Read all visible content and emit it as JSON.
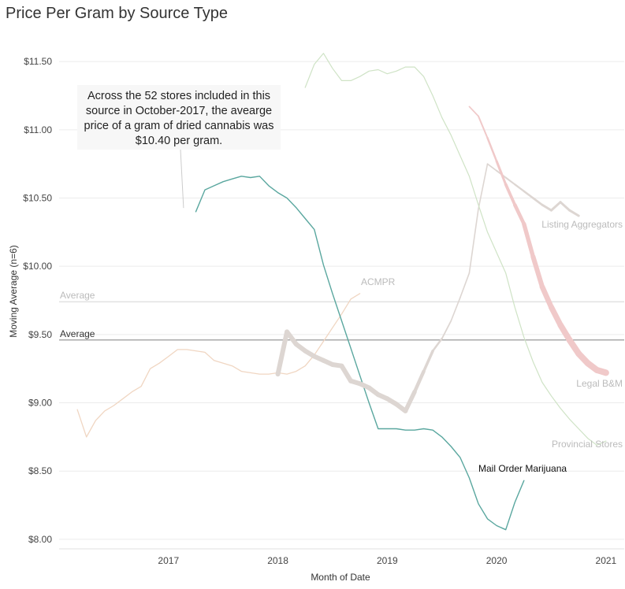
{
  "chart_data": {
    "type": "line",
    "title": "Price Per Gram by Source Type",
    "xlabel": "Month of Date",
    "ylabel": "Moving Average (n=6)",
    "x_ticks": [
      "2017",
      "2018",
      "2019",
      "2020",
      "2021"
    ],
    "y_ticks": [
      {
        "value": 8.0,
        "label": "$8.00"
      },
      {
        "value": 8.5,
        "label": "$8.50"
      },
      {
        "value": 9.0,
        "label": "$9.00"
      },
      {
        "value": 9.5,
        "label": "$9.50"
      },
      {
        "value": 10.0,
        "label": "$10.00"
      },
      {
        "value": 10.5,
        "label": "$10.50"
      },
      {
        "value": 11.0,
        "label": "$11.00"
      },
      {
        "value": 11.5,
        "label": "$11.50"
      }
    ],
    "xlim": [
      "2016-07",
      "2021-09"
    ],
    "ylim": [
      7.93,
      11.72
    ],
    "grid": "horizontal",
    "reference_lines": [
      {
        "label": "Average",
        "value": 9.74,
        "color": "#dddddd",
        "label_color": "#bbbbbb"
      },
      {
        "label": "Average",
        "value": 9.46,
        "color": "#999999",
        "label_color": "#333333"
      }
    ],
    "annotation": {
      "text": "Across the 52 stores included in this source in October-2017, the avearge price of a gram of dried cannabis was $10.40 per gram.",
      "target": {
        "x": "2017-09",
        "y": 10.45
      }
    },
    "series": [
      {
        "name": "ACMPR",
        "color": "#f0d6c2",
        "width": 1.3,
        "label_color": "#bbbbbb",
        "x": [
          "2016-09",
          "2016-10",
          "2016-11",
          "2016-12",
          "2017-01",
          "2017-02",
          "2017-03",
          "2017-04",
          "2017-05",
          "2017-06",
          "2017-07",
          "2017-08",
          "2017-09",
          "2017-10",
          "2017-11",
          "2017-12",
          "2018-01",
          "2018-02",
          "2018-03",
          "2018-04",
          "2018-05",
          "2018-06",
          "2018-07",
          "2018-08",
          "2018-09",
          "2018-10",
          "2018-11",
          "2018-12",
          "2019-01",
          "2019-02",
          "2019-03",
          "2019-04"
        ],
        "y": [
          8.95,
          8.75,
          8.87,
          8.94,
          8.98,
          9.03,
          9.08,
          9.12,
          9.25,
          9.29,
          9.34,
          9.39,
          9.39,
          9.38,
          9.37,
          9.31,
          9.29,
          9.27,
          9.23,
          9.22,
          9.21,
          9.21,
          9.22,
          9.21,
          9.23,
          9.27,
          9.35,
          9.45,
          9.55,
          9.65,
          9.76,
          9.8
        ]
      },
      {
        "name": "Mail Order Marijuana",
        "color": "#5aa79f",
        "width": 1.4,
        "label_color": "#111111",
        "x": [
          "2017-10",
          "2017-11",
          "2017-12",
          "2018-01",
          "2018-02",
          "2018-03",
          "2018-04",
          "2018-05",
          "2018-06",
          "2018-07",
          "2018-08",
          "2018-09",
          "2018-10",
          "2018-11",
          "2018-12",
          "2019-01",
          "2019-02",
          "2019-03",
          "2019-04",
          "2019-05",
          "2019-06",
          "2019-07",
          "2019-08",
          "2019-09",
          "2019-10",
          "2019-11",
          "2019-12",
          "2020-01",
          "2020-02",
          "2020-03",
          "2020-04",
          "2020-05",
          "2020-06",
          "2020-07",
          "2020-08",
          "2020-09",
          "2020-10"
        ],
        "y": [
          10.4,
          10.56,
          10.59,
          10.62,
          10.64,
          10.66,
          10.65,
          10.66,
          10.59,
          10.54,
          10.5,
          10.43,
          10.35,
          10.27,
          10.01,
          9.8,
          9.6,
          9.4,
          9.2,
          9.0,
          8.81,
          8.81,
          8.81,
          8.8,
          8.8,
          8.81,
          8.8,
          8.75,
          8.68,
          8.6,
          8.45,
          8.26,
          8.15,
          8.1,
          8.07,
          8.27,
          8.43
        ]
      },
      {
        "name": "",
        "color": "#ddd6d2",
        "width": 6,
        "label_color": "#bbbbbb",
        "x": [
          "2018-07",
          "2018-08",
          "2018-09",
          "2018-10",
          "2018-11",
          "2018-12",
          "2019-01",
          "2019-02",
          "2019-03",
          "2019-04",
          "2019-05",
          "2019-06",
          "2019-07",
          "2019-08",
          "2019-09",
          "2019-10",
          "2019-11",
          "2019-12",
          "2020-01",
          "2020-02",
          "2020-03",
          "2020-04",
          "2020-05",
          "2020-06",
          "2020-07",
          "2020-08",
          "2020-09",
          "2020-10",
          "2020-11",
          "2020-12",
          "2021-01",
          "2021-02",
          "2021-03",
          "2021-04"
        ],
        "y": [
          9.21,
          9.52,
          9.43,
          9.38,
          9.34,
          9.31,
          9.28,
          9.27,
          9.16,
          9.14,
          9.11,
          9.06,
          9.03,
          8.99,
          8.94,
          9.08,
          9.23,
          9.38,
          9.47,
          9.6,
          9.77,
          9.95,
          10.42,
          10.75,
          10.7,
          10.65,
          10.6,
          10.55,
          10.5,
          10.45,
          10.41,
          10.47,
          10.41,
          10.37
        ],
        "widths": [
          6,
          6,
          6,
          6,
          6,
          6,
          6,
          6,
          6,
          6,
          6,
          6,
          6,
          6,
          6,
          5,
          4,
          3,
          2,
          1.6,
          1.6,
          1.6,
          1.6,
          1.6,
          1.8,
          2,
          2.2,
          2.4,
          2.6,
          2.8,
          3,
          3,
          3,
          3
        ]
      },
      {
        "name": "Listing Aggregators",
        "color": "#dddddd",
        "width": 3,
        "label_color": "#bbbbbb",
        "x": [],
        "y": []
      },
      {
        "name": "Provincial Stores",
        "color": "#cfe3c6",
        "width": 1.2,
        "label_color": "#bbbbbb",
        "x": [
          "2018-10",
          "2018-11",
          "2018-12",
          "2019-01",
          "2019-02",
          "2019-03",
          "2019-04",
          "2019-05",
          "2019-06",
          "2019-07",
          "2019-08",
          "2019-09",
          "2019-10",
          "2019-11",
          "2019-12",
          "2020-01",
          "2020-02",
          "2020-03",
          "2020-04",
          "2020-05",
          "2020-06",
          "2020-07",
          "2020-08",
          "2020-09",
          "2020-10",
          "2020-11",
          "2020-12",
          "2021-01",
          "2021-02",
          "2021-03",
          "2021-04",
          "2021-05",
          "2021-06",
          "2021-07"
        ],
        "y": [
          11.31,
          11.48,
          11.56,
          11.45,
          11.36,
          11.36,
          11.39,
          11.43,
          11.44,
          11.41,
          11.43,
          11.46,
          11.46,
          11.39,
          11.25,
          11.09,
          10.96,
          10.81,
          10.66,
          10.45,
          10.25,
          10.1,
          9.95,
          9.7,
          9.48,
          9.3,
          9.15,
          9.05,
          8.96,
          8.88,
          8.81,
          8.74,
          8.69,
          8.72
        ]
      },
      {
        "name": "Legal B&M",
        "color": "#f0c9c9",
        "width": 8,
        "label_color": "#bbbbbb",
        "x": [
          "2020-04",
          "2020-05",
          "2020-06",
          "2020-07",
          "2020-08",
          "2020-09",
          "2020-10",
          "2020-11",
          "2020-12",
          "2021-01",
          "2021-02",
          "2021-03",
          "2021-04",
          "2021-05",
          "2021-06",
          "2021-07"
        ],
        "y": [
          11.17,
          11.1,
          10.94,
          10.77,
          10.6,
          10.45,
          10.31,
          10.07,
          9.85,
          9.7,
          9.57,
          9.46,
          9.36,
          9.29,
          9.24,
          9.22
        ],
        "widths": [
          1.6,
          1.8,
          2.2,
          2.8,
          3.4,
          4.2,
          5,
          5.8,
          6.4,
          7,
          7.4,
          7.8,
          8,
          8,
          8,
          8
        ]
      }
    ]
  }
}
